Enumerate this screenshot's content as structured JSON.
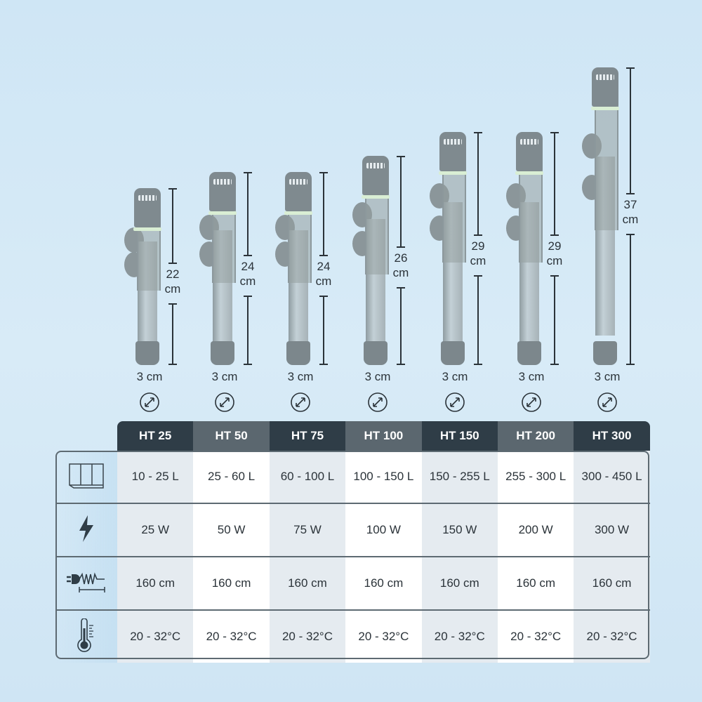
{
  "colors": {
    "header_dark": "#2f3d47",
    "header_light": "#5b676f",
    "text": "#2b3339"
  },
  "models": [
    {
      "name": "HT 25",
      "length": "22",
      "length_unit": "cm",
      "length_cm": 22,
      "diameter": "3 cm",
      "volume": "10 - 25 L",
      "power": "25 W",
      "cable": "160 cm",
      "temp": "20 - 32°C"
    },
    {
      "name": "HT 50",
      "length": "24",
      "length_unit": "cm",
      "length_cm": 24,
      "diameter": "3 cm",
      "volume": "25 - 60 L",
      "power": "50 W",
      "cable": "160 cm",
      "temp": "20 - 32°C"
    },
    {
      "name": "HT 75",
      "length": "24",
      "length_unit": "cm",
      "length_cm": 24,
      "diameter": "3 cm",
      "volume": "60 - 100 L",
      "power": "75 W",
      "cable": "160 cm",
      "temp": "20 - 32°C"
    },
    {
      "name": "HT 100",
      "length": "26",
      "length_unit": "cm",
      "length_cm": 26,
      "diameter": "3 cm",
      "volume": "100 - 150 L",
      "power": "100 W",
      "cable": "160 cm",
      "temp": "20 - 32°C"
    },
    {
      "name": "HT 150",
      "length": "29",
      "length_unit": "cm",
      "length_cm": 29,
      "diameter": "3 cm",
      "volume": "150 - 255 L",
      "power": "150 W",
      "cable": "160 cm",
      "temp": "20 - 32°C"
    },
    {
      "name": "HT 200",
      "length": "29",
      "length_unit": "cm",
      "length_cm": 29,
      "diameter": "3 cm",
      "volume": "255 - 300 L",
      "power": "200 W",
      "cable": "160 cm",
      "temp": "20 - 32°C"
    },
    {
      "name": "HT 300",
      "length": "37",
      "length_unit": "cm",
      "length_cm": 37,
      "diameter": "3 cm",
      "volume": "300 - 450 L",
      "power": "300 W",
      "cable": "160 cm",
      "temp": "20 - 32°C"
    }
  ],
  "rows": [
    {
      "key": "volume",
      "icon": "aquarium-tank-icon"
    },
    {
      "key": "power",
      "icon": "lightning-bolt-icon"
    },
    {
      "key": "cable",
      "icon": "power-cable-icon"
    },
    {
      "key": "temp",
      "icon": "thermometer-icon"
    }
  ]
}
